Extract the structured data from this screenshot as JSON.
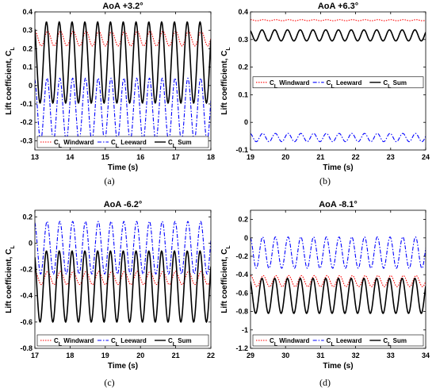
{
  "figure_caption_labels": [
    "(a)",
    "(b)",
    "(c)",
    "(d)"
  ],
  "chart_data": [
    {
      "type": "line",
      "title": "AoA +3.2°",
      "xlabel": "Time (s)",
      "ylabel": "Lift coefficient, C_L",
      "xlim": [
        13,
        18
      ],
      "ylim": [
        -0.35,
        0.4
      ],
      "xticks": [
        "13",
        "14",
        "15",
        "16",
        "17",
        "18"
      ],
      "yticks": [
        "-0.3",
        "-0.2",
        "-0.1",
        "0",
        "0.1",
        "0.2",
        "0.3",
        "0.4"
      ],
      "legend_position": "bottom",
      "grid": false,
      "series": [
        {
          "name": "C_L Windward",
          "style": "dotted",
          "color": "#ff0000",
          "mean": 0.255,
          "amplitude": 0.04,
          "cycles_per_second": 2.75
        },
        {
          "name": "C_L Leeward",
          "style": "dashdot",
          "color": "#0000ff",
          "mean": -0.13,
          "amplitude": 0.17,
          "cycles_per_second": 2.75
        },
        {
          "name": "C_L Sum",
          "style": "solid",
          "color": "#000000",
          "mean": 0.125,
          "amplitude": 0.22,
          "cycles_per_second": 2.75
        }
      ]
    },
    {
      "type": "line",
      "title": "AoA +6.3°",
      "xlabel": "Time (s)",
      "ylabel": "Lift coefficient, C_L",
      "xlim": [
        19,
        24
      ],
      "ylim": [
        -0.1,
        0.4
      ],
      "xticks": [
        "19",
        "20",
        "21",
        "22",
        "23",
        "24"
      ],
      "yticks": [
        "-0.1",
        "0",
        "0.1",
        "0.2",
        "0.3",
        "0.4"
      ],
      "legend_position": "middle",
      "grid": false,
      "series": [
        {
          "name": "C_L Windward",
          "style": "dotted",
          "color": "#ff0000",
          "mean": 0.37,
          "amplitude": 0.002,
          "cycles_per_second": 2.75
        },
        {
          "name": "C_L Leeward",
          "style": "dashdot",
          "color": "#0000ff",
          "mean": -0.055,
          "amplitude": 0.015,
          "cycles_per_second": 2.75
        },
        {
          "name": "C_L Sum",
          "style": "solid",
          "color": "#000000",
          "mean": 0.315,
          "amplitude": 0.02,
          "cycles_per_second": 2.75
        }
      ]
    },
    {
      "type": "line",
      "title": "AoA -6.2°",
      "xlabel": "Time (s)",
      "ylabel": "Lift coefficient, C_L",
      "xlim": [
        17,
        22
      ],
      "ylim": [
        -0.8,
        0.25
      ],
      "xticks": [
        "17",
        "18",
        "19",
        "20",
        "21",
        "22"
      ],
      "yticks": [
        "-0.8",
        "-0.6",
        "-0.4",
        "-0.2",
        "0",
        "0.2"
      ],
      "legend_position": "bottom",
      "grid": false,
      "series": [
        {
          "name": "C_L Windward",
          "style": "dotted",
          "color": "#ff0000",
          "mean": -0.265,
          "amplitude": 0.05,
          "cycles_per_second": 2.75
        },
        {
          "name": "C_L Leeward",
          "style": "dashdot",
          "color": "#0000ff",
          "mean": -0.035,
          "amplitude": 0.2,
          "cycles_per_second": 2.75
        },
        {
          "name": "C_L Sum",
          "style": "solid",
          "color": "#000000",
          "mean": -0.33,
          "amplitude": 0.27,
          "cycles_per_second": 2.75
        }
      ]
    },
    {
      "type": "line",
      "title": "AoA -8.1°",
      "xlabel": "Time (s)",
      "ylabel": "Lift coefficient, C_L",
      "xlim": [
        29,
        34
      ],
      "ylim": [
        -1.2,
        0.3
      ],
      "xticks": [
        "29",
        "30",
        "31",
        "32",
        "33",
        "34"
      ],
      "yticks": [
        "-1.2",
        "-1",
        "-0.8",
        "-0.6",
        "-0.4",
        "-0.2",
        "0",
        "0.2"
      ],
      "legend_position": "bottom",
      "grid": false,
      "series": [
        {
          "name": "C_L Windward",
          "style": "dotted",
          "color": "#ff0000",
          "mean": -0.47,
          "amplitude": 0.06,
          "cycles_per_second": 2.75
        },
        {
          "name": "C_L Leeward",
          "style": "dashdot",
          "color": "#0000ff",
          "mean": -0.16,
          "amplitude": 0.17,
          "cycles_per_second": 2.75
        },
        {
          "name": "C_L Sum",
          "style": "solid",
          "color": "#000000",
          "mean": -0.63,
          "amplitude": 0.19,
          "cycles_per_second": 2.75
        }
      ]
    }
  ]
}
